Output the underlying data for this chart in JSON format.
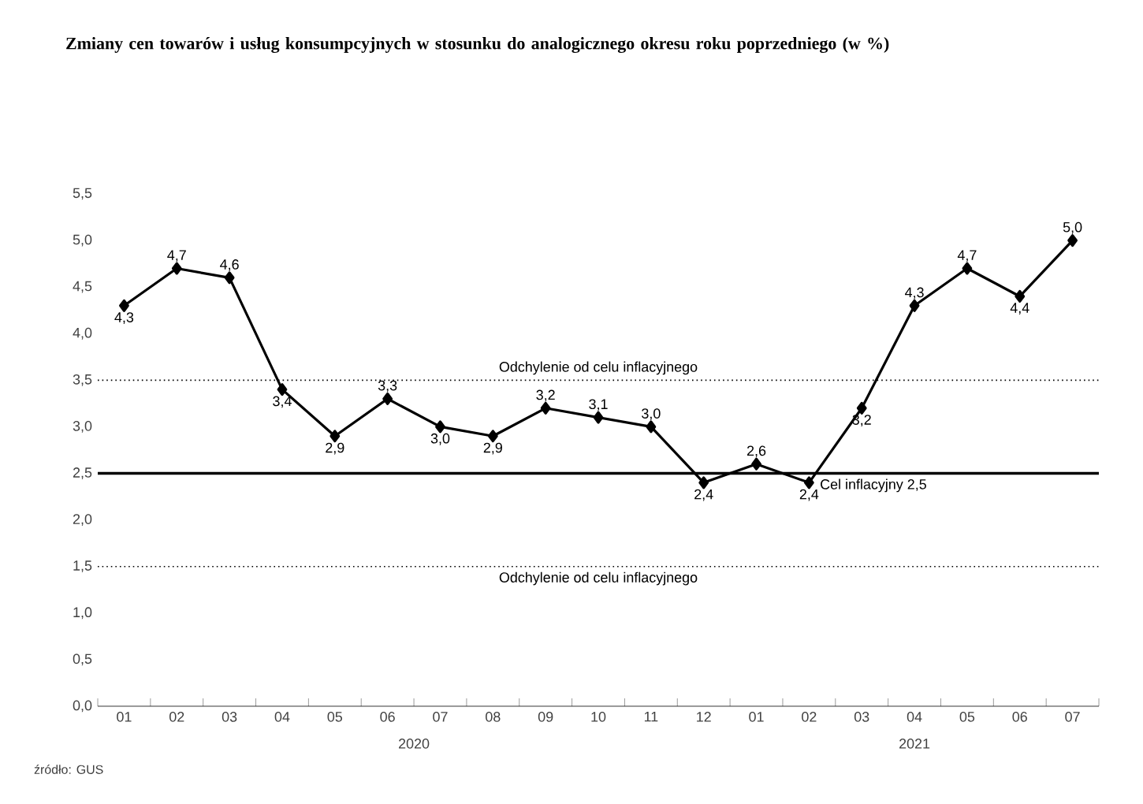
{
  "chart_data": {
    "type": "line",
    "title": "Zmiany cen towarów i usług konsumpcyjnych w stosunku do analogicznego okresu roku poprzedniego (w %)",
    "categories": [
      "01",
      "02",
      "03",
      "04",
      "05",
      "06",
      "07",
      "08",
      "09",
      "10",
      "11",
      "12",
      "01",
      "02",
      "03",
      "04",
      "05",
      "06",
      "07"
    ],
    "series": [
      {
        "color": "#000000",
        "values": [
          4.3,
          4.7,
          4.6,
          3.4,
          2.9,
          3.3,
          3.0,
          2.9,
          3.2,
          3.1,
          3.0,
          2.4,
          2.6,
          2.4,
          3.2,
          4.3,
          4.7,
          4.4,
          5.0
        ],
        "value_labels": [
          "4,3",
          "4,7",
          "4,6",
          "3,4",
          "2,9",
          "3,3",
          "3,0",
          "2,9",
          "3,2",
          "3,1",
          "3,0",
          "2,4",
          "2,6",
          "2,4",
          "3,2",
          "4,3",
          "4,7",
          "4,4",
          "5,0"
        ]
      }
    ],
    "ylim": [
      0,
      5.5
    ],
    "yticks": [
      {
        "value": 0,
        "label": "0,0"
      },
      {
        "value": 0.5,
        "label": "0,5"
      },
      {
        "value": 1,
        "label": "1,0"
      },
      {
        "value": 1.5,
        "label": "1,5"
      },
      {
        "value": 2,
        "label": "2,0"
      },
      {
        "value": 2.5,
        "label": "2,5"
      },
      {
        "value": 3,
        "label": "3,0"
      },
      {
        "value": 3.5,
        "label": "3,5"
      },
      {
        "value": 4,
        "label": "4,0"
      },
      {
        "value": 4.5,
        "label": "4,5"
      },
      {
        "value": 5,
        "label": "5,0"
      },
      {
        "value": 5.5,
        "label": "5,5"
      }
    ],
    "ref_lines": [
      {
        "axis": "y",
        "value": 3.5,
        "label": "Odchylenie od celu inflacyjnego",
        "line_style": "dotted",
        "color": "#000000"
      },
      {
        "axis": "y",
        "value": 2.5,
        "label": "Cel inflacyjny 2,5",
        "line_style": "solid",
        "color": "#000000"
      },
      {
        "axis": "y",
        "value": 1.5,
        "label": "Odchylenie od celu inflacyjnego",
        "line_style": "dotted",
        "color": "#000000"
      }
    ],
    "annotations": [
      "2020",
      "2021",
      "źródło: GUS"
    ],
    "marker": "diamond",
    "line_style": "solid",
    "grid": false
  }
}
